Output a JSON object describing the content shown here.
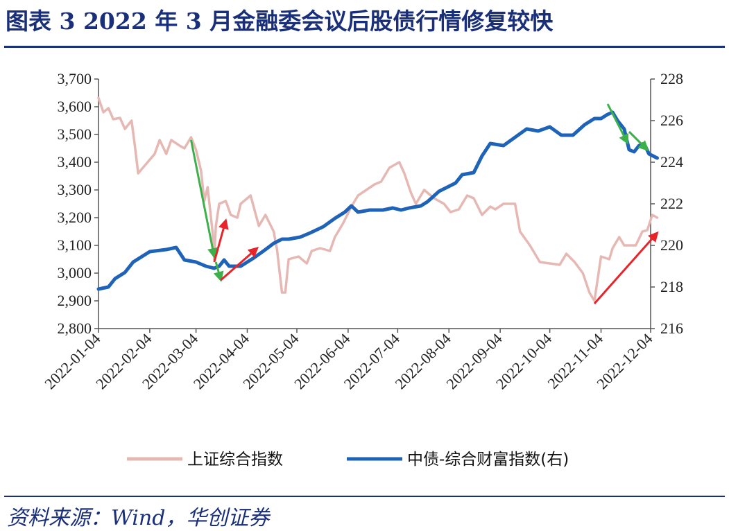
{
  "header": {
    "title": "图表 3 2022 年 3 月金融委会议后股债行情修复较快"
  },
  "footer": {
    "source": "资料来源：Wind，华创证券"
  },
  "colors": {
    "title": "#1a2f7a",
    "stock": "#e6b8b3",
    "bond": "#1e63b8",
    "arrow_green": "#3cb04a",
    "arrow_red": "#e8242a"
  },
  "chart_data": {
    "type": "line",
    "title": "图表 3 2022 年 3 月金融委会议后股债行情修复较快",
    "xlabel": "",
    "ylabel_left": "",
    "ylabel_right": "",
    "y_left_lim": [
      2800,
      3700
    ],
    "y_left_ticks": [
      "3,700",
      "3,600",
      "3,500",
      "3,400",
      "3,300",
      "3,200",
      "3,100",
      "3,000",
      "2,900",
      "2,800"
    ],
    "y_right_lim": [
      216,
      228
    ],
    "y_right_ticks": [
      "228",
      "226",
      "224",
      "222",
      "220",
      "218",
      "216"
    ],
    "x_ticks": [
      "2022-01-04",
      "2022-02-04",
      "2022-03-04",
      "2022-04-04",
      "2022-05-04",
      "2022-06-04",
      "2022-07-04",
      "2022-08-04",
      "2022-09-04",
      "2022-10-04",
      "2022-11-04",
      "2022-12-04"
    ],
    "legend_position": "bottom",
    "series": [
      {
        "name": "上证综合指数",
        "axis": "left",
        "color": "#e6b8b3",
        "points": [
          [
            "2022-01-04",
            3632
          ],
          [
            "2022-01-07",
            3580
          ],
          [
            "2022-01-10",
            3595
          ],
          [
            "2022-01-13",
            3555
          ],
          [
            "2022-01-17",
            3560
          ],
          [
            "2022-01-20",
            3520
          ],
          [
            "2022-01-24",
            3550
          ],
          [
            "2022-01-26",
            3460
          ],
          [
            "2022-01-28",
            3360
          ],
          [
            "2022-02-07",
            3430
          ],
          [
            "2022-02-10",
            3480
          ],
          [
            "2022-02-14",
            3430
          ],
          [
            "2022-02-17",
            3480
          ],
          [
            "2022-02-22",
            3460
          ],
          [
            "2022-02-25",
            3450
          ],
          [
            "2022-03-01",
            3490
          ],
          [
            "2022-03-04",
            3445
          ],
          [
            "2022-03-07",
            3370
          ],
          [
            "2022-03-09",
            3260
          ],
          [
            "2022-03-11",
            3310
          ],
          [
            "2022-03-14",
            3150
          ],
          [
            "2022-03-15",
            3050
          ],
          [
            "2022-03-16",
            3170
          ],
          [
            "2022-03-18",
            3250
          ],
          [
            "2022-03-22",
            3260
          ],
          [
            "2022-03-25",
            3210
          ],
          [
            "2022-03-29",
            3200
          ],
          [
            "2022-03-31",
            3250
          ],
          [
            "2022-04-06",
            3280
          ],
          [
            "2022-04-11",
            3170
          ],
          [
            "2022-04-15",
            3210
          ],
          [
            "2022-04-20",
            3150
          ],
          [
            "2022-04-22",
            3085
          ],
          [
            "2022-04-25",
            2930
          ],
          [
            "2022-04-27",
            2930
          ],
          [
            "2022-04-29",
            3050
          ],
          [
            "2022-05-05",
            3060
          ],
          [
            "2022-05-10",
            3035
          ],
          [
            "2022-05-13",
            3080
          ],
          [
            "2022-05-18",
            3090
          ],
          [
            "2022-05-24",
            3080
          ],
          [
            "2022-05-27",
            3130
          ],
          [
            "2022-06-01",
            3180
          ],
          [
            "2022-06-06",
            3240
          ],
          [
            "2022-06-10",
            3280
          ],
          [
            "2022-06-15",
            3300
          ],
          [
            "2022-06-20",
            3320
          ],
          [
            "2022-06-24",
            3330
          ],
          [
            "2022-06-29",
            3380
          ],
          [
            "2022-07-05",
            3400
          ],
          [
            "2022-07-08",
            3360
          ],
          [
            "2022-07-12",
            3290
          ],
          [
            "2022-07-15",
            3250
          ],
          [
            "2022-07-20",
            3300
          ],
          [
            "2022-07-26",
            3270
          ],
          [
            "2022-08-01",
            3250
          ],
          [
            "2022-08-05",
            3220
          ],
          [
            "2022-08-10",
            3230
          ],
          [
            "2022-08-15",
            3280
          ],
          [
            "2022-08-19",
            3270
          ],
          [
            "2022-08-24",
            3210
          ],
          [
            "2022-08-29",
            3240
          ],
          [
            "2022-09-01",
            3230
          ],
          [
            "2022-09-06",
            3250
          ],
          [
            "2022-09-13",
            3250
          ],
          [
            "2022-09-16",
            3150
          ],
          [
            "2022-09-22",
            3100
          ],
          [
            "2022-09-28",
            3040
          ],
          [
            "2022-10-10",
            3030
          ],
          [
            "2022-10-14",
            3070
          ],
          [
            "2022-10-19",
            3040
          ],
          [
            "2022-10-24",
            3000
          ],
          [
            "2022-10-28",
            2930
          ],
          [
            "2022-10-31",
            2900
          ],
          [
            "2022-11-04",
            3060
          ],
          [
            "2022-11-09",
            3050
          ],
          [
            "2022-11-11",
            3090
          ],
          [
            "2022-11-15",
            3130
          ],
          [
            "2022-11-18",
            3100
          ],
          [
            "2022-11-25",
            3100
          ],
          [
            "2022-11-29",
            3150
          ],
          [
            "2022-12-02",
            3155
          ],
          [
            "2022-12-05",
            3210
          ],
          [
            "2022-12-08",
            3200
          ]
        ]
      },
      {
        "name": "中债-综合财富指数(右)",
        "axis": "right",
        "color": "#1e63b8",
        "points": [
          [
            "2022-01-04",
            217.9
          ],
          [
            "2022-01-10",
            218.0
          ],
          [
            "2022-01-14",
            218.4
          ],
          [
            "2022-01-20",
            218.7
          ],
          [
            "2022-01-25",
            219.2
          ],
          [
            "2022-02-04",
            219.7
          ],
          [
            "2022-02-14",
            219.8
          ],
          [
            "2022-02-20",
            219.9
          ],
          [
            "2022-02-25",
            219.3
          ],
          [
            "2022-03-04",
            219.2
          ],
          [
            "2022-03-10",
            219.0
          ],
          [
            "2022-03-15",
            218.9
          ],
          [
            "2022-03-18",
            219.0
          ],
          [
            "2022-03-21",
            219.3
          ],
          [
            "2022-03-24",
            219.0
          ],
          [
            "2022-03-31",
            219.0
          ],
          [
            "2022-04-08",
            219.4
          ],
          [
            "2022-04-15",
            219.8
          ],
          [
            "2022-04-20",
            220.1
          ],
          [
            "2022-04-25",
            220.3
          ],
          [
            "2022-04-29",
            220.3
          ],
          [
            "2022-05-06",
            220.4
          ],
          [
            "2022-05-12",
            220.6
          ],
          [
            "2022-05-20",
            220.9
          ],
          [
            "2022-05-27",
            221.3
          ],
          [
            "2022-06-02",
            221.6
          ],
          [
            "2022-06-06",
            221.9
          ],
          [
            "2022-06-10",
            221.6
          ],
          [
            "2022-06-17",
            221.7
          ],
          [
            "2022-06-25",
            221.7
          ],
          [
            "2022-07-01",
            221.8
          ],
          [
            "2022-07-06",
            221.7
          ],
          [
            "2022-07-11",
            221.8
          ],
          [
            "2022-07-18",
            221.9
          ],
          [
            "2022-07-22",
            222.1
          ],
          [
            "2022-07-29",
            222.6
          ],
          [
            "2022-08-03",
            222.8
          ],
          [
            "2022-08-08",
            223.0
          ],
          [
            "2022-08-12",
            223.4
          ],
          [
            "2022-08-19",
            223.5
          ],
          [
            "2022-08-24",
            224.3
          ],
          [
            "2022-08-29",
            224.9
          ],
          [
            "2022-09-06",
            224.8
          ],
          [
            "2022-09-13",
            225.2
          ],
          [
            "2022-09-20",
            225.6
          ],
          [
            "2022-09-27",
            225.5
          ],
          [
            "2022-10-04",
            225.7
          ],
          [
            "2022-10-11",
            225.3
          ],
          [
            "2022-10-18",
            225.3
          ],
          [
            "2022-10-25",
            225.8
          ],
          [
            "2022-10-31",
            226.1
          ],
          [
            "2022-11-04",
            226.1
          ],
          [
            "2022-11-08",
            226.3
          ],
          [
            "2022-11-11",
            226.4
          ],
          [
            "2022-11-14",
            226.0
          ],
          [
            "2022-11-18",
            225.6
          ],
          [
            "2022-11-21",
            224.6
          ],
          [
            "2022-11-24",
            224.5
          ],
          [
            "2022-11-27",
            224.8
          ],
          [
            "2022-11-30",
            224.9
          ],
          [
            "2022-12-03",
            224.4
          ],
          [
            "2022-12-08",
            224.2
          ]
        ]
      }
    ],
    "annotations": [
      {
        "type": "arrow",
        "color": "green",
        "from": [
          "2022-03-01",
          3480
        ],
        "to": [
          "2022-03-15",
          3060
        ]
      },
      {
        "type": "arrow",
        "color": "green",
        "from": [
          "2022-03-16",
          3040
        ],
        "to": [
          "2022-03-19",
          2975
        ]
      },
      {
        "type": "arrow",
        "color": "red",
        "from": [
          "2022-03-15",
          3040
        ],
        "to": [
          "2022-03-22",
          3190
        ]
      },
      {
        "type": "arrow",
        "color": "red",
        "from": [
          "2022-03-19",
          2975
        ],
        "to": [
          "2022-04-10",
          3090
        ]
      },
      {
        "type": "arrow",
        "color": "red",
        "from": [
          "2022-10-31",
          2890
        ],
        "to": [
          "2022-12-08",
          3145
        ]
      },
      {
        "type": "arrow",
        "color": "green",
        "from": [
          "2022-11-08",
          3610
        ],
        "to": [
          "2022-11-20",
          3470
        ]
      },
      {
        "type": "arrow",
        "color": "green",
        "from": [
          "2022-11-21",
          3510
        ],
        "to": [
          "2022-12-02",
          3445
        ]
      }
    ]
  }
}
